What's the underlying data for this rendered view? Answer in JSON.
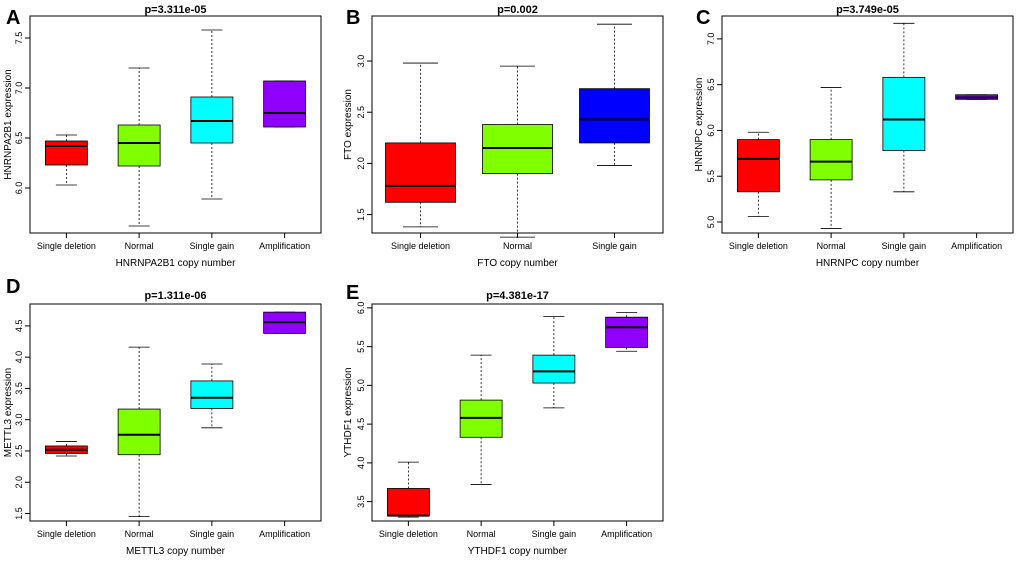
{
  "chart_data": [
    {
      "type": "box",
      "panel": "A",
      "title": "p=3.311e-05",
      "xlabel": "HNRNPA2B1 copy number",
      "ylabel": "HNRNPA2B1 expression",
      "ylim": [
        5.55,
        7.72
      ],
      "yticks": [
        "6.0",
        "6.5",
        "7.0",
        "7.5"
      ],
      "categories": [
        "Single deletion",
        "Normal",
        "Single gain",
        "Amplification"
      ],
      "boxes": [
        {
          "category": "Single deletion",
          "color": "#ff0000",
          "min": 6.03,
          "q1": 6.23,
          "median": 6.42,
          "q3": 6.47,
          "max": 6.53
        },
        {
          "category": "Normal",
          "color": "#7fff00",
          "min": 5.62,
          "q1": 6.22,
          "median": 6.45,
          "q3": 6.63,
          "max": 7.2
        },
        {
          "category": "Single gain",
          "color": "#00ffff",
          "min": 5.89,
          "q1": 6.45,
          "median": 6.67,
          "q3": 6.91,
          "max": 7.58
        },
        {
          "category": "Amplification",
          "color": "#8f00ff",
          "min": 6.61,
          "q1": 6.61,
          "median": 6.75,
          "q3": 7.07,
          "max": 7.07
        }
      ]
    },
    {
      "type": "box",
      "panel": "B",
      "title": "p=0.002",
      "xlabel": "FTO copy number",
      "ylabel": "FTO expression",
      "ylim": [
        1.32,
        3.44
      ],
      "yticks": [
        "1.5",
        "2.0",
        "2.5",
        "3.0"
      ],
      "categories": [
        "Single deletion",
        "Normal",
        "Single gain"
      ],
      "boxes": [
        {
          "category": "Single deletion",
          "color": "#ff0000",
          "min": 1.38,
          "q1": 1.62,
          "median": 1.78,
          "q3": 2.2,
          "max": 2.98
        },
        {
          "category": "Normal",
          "color": "#7fff00",
          "min": 1.28,
          "q1": 1.9,
          "median": 2.15,
          "q3": 2.38,
          "max": 2.95
        },
        {
          "category": "Single gain",
          "color": "#0000ff",
          "min": 1.98,
          "q1": 2.2,
          "median": 2.43,
          "q3": 2.73,
          "max": 3.36
        }
      ]
    },
    {
      "type": "box",
      "panel": "C",
      "title": "p=3.749e-05",
      "xlabel": "HNRNPC copy number",
      "ylabel": "HNRNPC expression",
      "ylim": [
        4.88,
        7.25
      ],
      "yticks": [
        "5.0",
        "5.5",
        "6.0",
        "6.5",
        "7.0"
      ],
      "categories": [
        "Single deletion",
        "Normal",
        "Single gain",
        "Amplification"
      ],
      "boxes": [
        {
          "category": "Single deletion",
          "color": "#ff0000",
          "min": 5.06,
          "q1": 5.33,
          "median": 5.69,
          "q3": 5.9,
          "max": 5.98
        },
        {
          "category": "Normal",
          "color": "#7fff00",
          "min": 4.93,
          "q1": 5.46,
          "median": 5.66,
          "q3": 5.9,
          "max": 6.47
        },
        {
          "category": "Single gain",
          "color": "#00ffff",
          "min": 5.33,
          "q1": 5.78,
          "median": 6.12,
          "q3": 6.58,
          "max": 7.17
        },
        {
          "category": "Amplification",
          "color": "#8f00ff",
          "min": 6.34,
          "q1": 6.34,
          "median": 6.36,
          "q3": 6.39,
          "max": 6.39
        }
      ]
    },
    {
      "type": "box",
      "panel": "D",
      "title": "p=1.311e-06",
      "xlabel": "METTL3 copy number",
      "ylabel": "METTL3 expression",
      "ylim": [
        1.38,
        4.85
      ],
      "yticks": [
        "1.5",
        "2.0",
        "2.5",
        "3.0",
        "3.5",
        "4.0",
        "4.5"
      ],
      "categories": [
        "Single deletion",
        "Normal",
        "Single gain",
        "Amplification"
      ],
      "boxes": [
        {
          "category": "Single deletion",
          "color": "#ff0000",
          "min": 2.42,
          "q1": 2.46,
          "median": 2.52,
          "q3": 2.58,
          "max": 2.65
        },
        {
          "category": "Normal",
          "color": "#7fff00",
          "min": 1.45,
          "q1": 2.44,
          "median": 2.76,
          "q3": 3.17,
          "max": 4.16
        },
        {
          "category": "Single gain",
          "color": "#00ffff",
          "min": 2.87,
          "q1": 3.18,
          "median": 3.35,
          "q3": 3.62,
          "max": 3.89
        },
        {
          "category": "Amplification",
          "color": "#8f00ff",
          "min": 4.38,
          "q1": 4.38,
          "median": 4.56,
          "q3": 4.72,
          "max": 4.72
        }
      ]
    },
    {
      "type": "box",
      "panel": "E",
      "title": "p=4.381e-17",
      "xlabel": "YTHDF1 copy number",
      "ylabel": "YTHDF1 expression",
      "ylim": [
        3.25,
        6.05
      ],
      "yticks": [
        "3.5",
        "4.0",
        "4.5",
        "5.0",
        "5.5",
        "6.0"
      ],
      "categories": [
        "Single deletion",
        "Normal",
        "Single gain",
        "Amplification"
      ],
      "boxes": [
        {
          "category": "Single deletion",
          "color": "#ff0000",
          "min": 3.3,
          "q1": 3.32,
          "median": 3.32,
          "q3": 3.67,
          "max": 4.01
        },
        {
          "category": "Normal",
          "color": "#7fff00",
          "min": 3.72,
          "q1": 4.33,
          "median": 4.58,
          "q3": 4.81,
          "max": 5.39
        },
        {
          "category": "Single gain",
          "color": "#00ffff",
          "min": 4.71,
          "q1": 5.03,
          "median": 5.18,
          "q3": 5.39,
          "max": 5.89
        },
        {
          "category": "Amplification",
          "color": "#8f00ff",
          "min": 5.44,
          "q1": 5.49,
          "median": 5.75,
          "q3": 5.88,
          "max": 5.94
        }
      ]
    }
  ]
}
